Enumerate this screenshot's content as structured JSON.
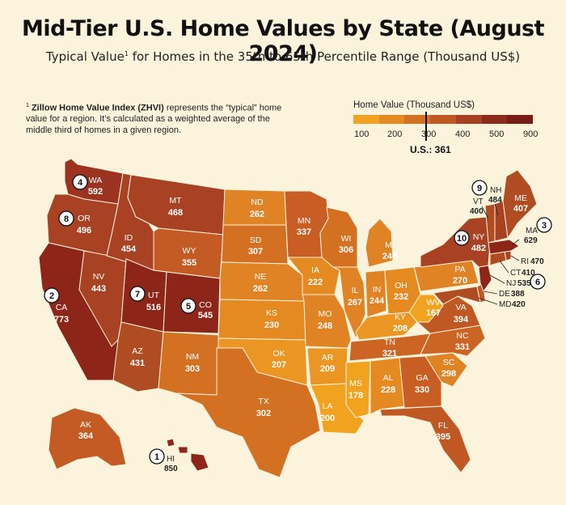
{
  "title": "Mid-Tier U.S. Home Values by State (August 2024)",
  "subtitle_pre": "Typical Value",
  "subtitle_sup": "1",
  "subtitle_post": " for Homes in the 35th to 65th Percentile Range (Thousand US$)",
  "footnote": {
    "marker": "1",
    "bold": " Zillow Home Value Index (ZHVI)",
    "text": " represents the “typical” home value for a region. It’s calculated as a weighted average of the middle third of homes in a given region."
  },
  "legend": {
    "title": "Home Value (Thousand US$)",
    "ticks": [
      "100",
      "200",
      "300",
      "400",
      "500",
      "900"
    ],
    "colors": [
      "#f1a21f",
      "#e58a21",
      "#d47022",
      "#c05823",
      "#a74022",
      "#8c2a1b",
      "#7a1c16"
    ],
    "us_label": "U.S.: 361",
    "us_value": 361
  },
  "states": [
    {
      "abbr": "WA",
      "value": "592"
    },
    {
      "abbr": "OR",
      "value": "496"
    },
    {
      "abbr": "CA",
      "value": "773"
    },
    {
      "abbr": "NV",
      "value": "443"
    },
    {
      "abbr": "ID",
      "value": "454"
    },
    {
      "abbr": "MT",
      "value": "468"
    },
    {
      "abbr": "WY",
      "value": "355"
    },
    {
      "abbr": "UT",
      "value": "516"
    },
    {
      "abbr": "CO",
      "value": "545"
    },
    {
      "abbr": "AZ",
      "value": "431"
    },
    {
      "abbr": "NM",
      "value": "303"
    },
    {
      "abbr": "ND",
      "value": "262"
    },
    {
      "abbr": "SD",
      "value": "307"
    },
    {
      "abbr": "NE",
      "value": "262"
    },
    {
      "abbr": "KS",
      "value": "230"
    },
    {
      "abbr": "OK",
      "value": "207"
    },
    {
      "abbr": "TX",
      "value": "302"
    },
    {
      "abbr": "MN",
      "value": "337"
    },
    {
      "abbr": "IA",
      "value": "222"
    },
    {
      "abbr": "MO",
      "value": "248"
    },
    {
      "abbr": "AR",
      "value": "209"
    },
    {
      "abbr": "LA",
      "value": "200"
    },
    {
      "abbr": "WI",
      "value": "306"
    },
    {
      "abbr": "IL",
      "value": "267"
    },
    {
      "abbr": "MI",
      "value": "248"
    },
    {
      "abbr": "IN",
      "value": "244"
    },
    {
      "abbr": "OH",
      "value": "232"
    },
    {
      "abbr": "KY",
      "value": "208"
    },
    {
      "abbr": "TN",
      "value": "321"
    },
    {
      "abbr": "MS",
      "value": "178"
    },
    {
      "abbr": "AL",
      "value": "228"
    },
    {
      "abbr": "GA",
      "value": "330"
    },
    {
      "abbr": "FL",
      "value": "395"
    },
    {
      "abbr": "SC",
      "value": "298"
    },
    {
      "abbr": "NC",
      "value": "331"
    },
    {
      "abbr": "VA",
      "value": "394"
    },
    {
      "abbr": "WV",
      "value": "167"
    },
    {
      "abbr": "PA",
      "value": "270"
    },
    {
      "abbr": "NY",
      "value": "482"
    },
    {
      "abbr": "AK",
      "value": "364"
    },
    {
      "abbr": "HI",
      "value": "850"
    }
  ],
  "northeast": [
    {
      "abbr": "VT",
      "value": "400"
    },
    {
      "abbr": "NH",
      "value": "484"
    },
    {
      "abbr": "ME",
      "value": "407"
    },
    {
      "abbr": "MA",
      "value": "629"
    },
    {
      "abbr": "RI",
      "value": "470"
    },
    {
      "abbr": "CT",
      "value": "410"
    },
    {
      "abbr": "NJ",
      "value": "535"
    },
    {
      "abbr": "DE",
      "value": "388"
    },
    {
      "abbr": "MD",
      "value": "420"
    }
  ],
  "ranks": [
    {
      "rank": "1",
      "state": "HI"
    },
    {
      "rank": "2",
      "state": "CA"
    },
    {
      "rank": "3",
      "state": "MA"
    },
    {
      "rank": "4",
      "state": "WA"
    },
    {
      "rank": "5",
      "state": "CO"
    },
    {
      "rank": "6",
      "state": "NJ"
    },
    {
      "rank": "7",
      "state": "UT"
    },
    {
      "rank": "8",
      "state": "OR"
    },
    {
      "rank": "9",
      "state": "NH"
    },
    {
      "rank": "10",
      "state": "NY"
    }
  ]
}
